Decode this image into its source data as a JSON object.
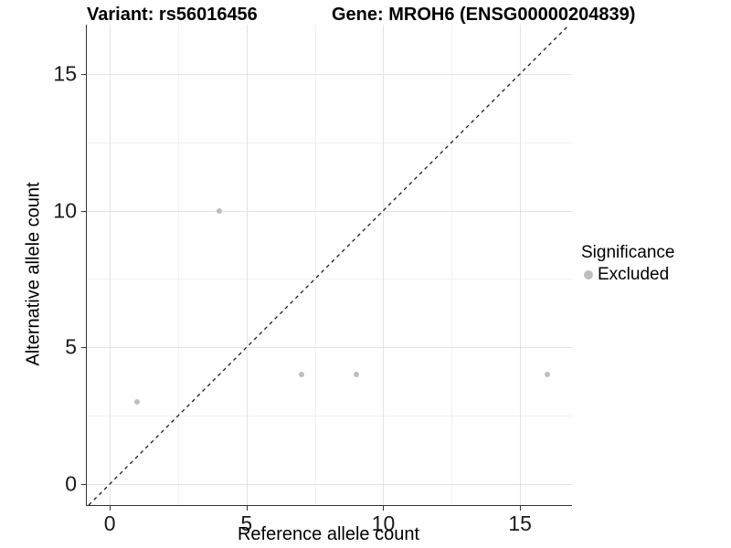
{
  "chart_data": {
    "type": "scatter",
    "title_left": "Variant: rs56016456",
    "title_right": "Gene: MROH6 (ENSG00000204839)",
    "xlabel": "Reference allele count",
    "ylabel": "Alternative allele count",
    "xlim": [
      -0.84,
      16.9
    ],
    "ylim": [
      -0.77,
      16.8
    ],
    "x_major_ticks": [
      0,
      5,
      10,
      15
    ],
    "y_major_ticks": [
      0,
      5,
      10,
      15
    ],
    "x_minor_ticks": [
      2.5,
      7.5,
      12.5
    ],
    "y_minor_ticks": [
      2.5,
      7.5,
      12.5
    ],
    "grid": "major-and-minor",
    "series": [
      {
        "name": "Excluded",
        "marker": "circle",
        "color": "#bebebe",
        "points": [
          [
            1,
            3
          ],
          [
            4,
            10
          ],
          [
            7,
            4
          ],
          [
            9,
            4
          ],
          [
            16,
            4
          ]
        ]
      }
    ],
    "reference_line": {
      "kind": "identity",
      "slope": 1,
      "intercept": 0,
      "style": "dashed",
      "color": "#1a1a1a"
    },
    "legend": {
      "position": "right",
      "title": "Significance",
      "items": [
        {
          "label": "Excluded",
          "color": "#bebebe",
          "marker": "circle"
        }
      ]
    }
  },
  "colors": {
    "background": "#ffffff",
    "point": "#bebebe",
    "grid_major": "#e3e3e3",
    "grid_minor": "#f1f1f1",
    "axis_line": "#333333",
    "text": "#000000",
    "reference_line": "#1a1a1a"
  }
}
